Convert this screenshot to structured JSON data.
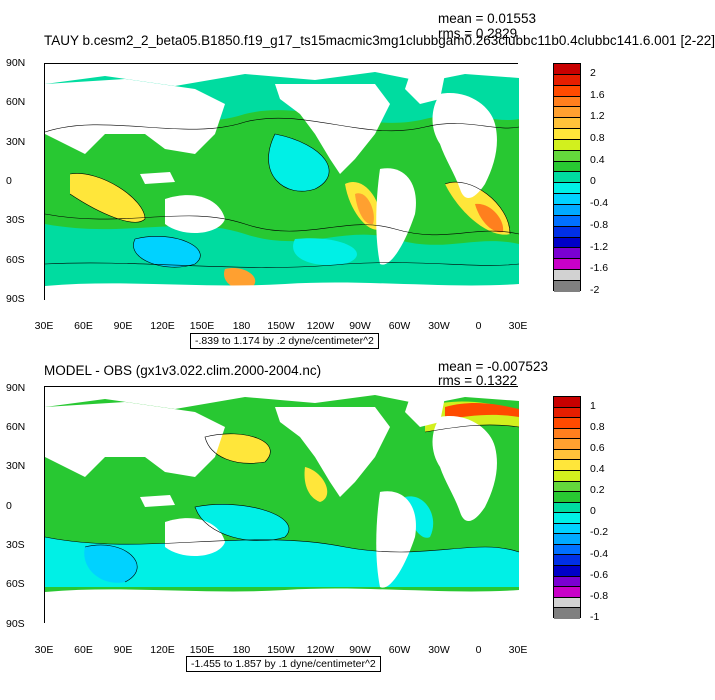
{
  "top": {
    "title": "TAUY b.cesm2_2_beta05.B1850.f19_g17_ts15macmic3mg1clubbgam0.263clubbc11b0.4clubbc141.6.001 [2-22]",
    "mean": "mean = 0.01553",
    "rms": "rms = 0.2829",
    "contour_info": "-.839 to 1.174 by .2 dyne/centimeter^2",
    "colorbar_labels": [
      "2",
      "1.6",
      "1.2",
      "0.8",
      "0.4",
      "0",
      "-0.4",
      "-0.8",
      "-1.2",
      "-1.6",
      "-2"
    ],
    "colors": [
      "#c80000",
      "#e61e00",
      "#ff4a00",
      "#ff7f1e",
      "#ffa030",
      "#ffc23a",
      "#ffe63a",
      "#d2f01e",
      "#64d83c",
      "#28c832",
      "#00dca0",
      "#00f0e6",
      "#00d2ff",
      "#00aaff",
      "#0070ff",
      "#0030e6",
      "#0000c8",
      "#7a00d2",
      "#c800c8",
      "#d2d2d2",
      "#808080"
    ]
  },
  "bottom": {
    "title": "MODEL - OBS (gx1v3.022.clim.2000-2004.nc)",
    "mean": "mean = -0.007523",
    "rms": "rms = 0.1322",
    "contour_info": "-1.455 to 1.857 by .1 dyne/centimeter^2",
    "colorbar_labels": [
      "1",
      "0.8",
      "0.6",
      "0.4",
      "0.2",
      "0",
      "-0.2",
      "-0.4",
      "-0.6",
      "-0.8",
      "-1"
    ],
    "colors": [
      "#c80000",
      "#e61e00",
      "#ff4a00",
      "#ff7f1e",
      "#ffa030",
      "#ffc23a",
      "#ffe63a",
      "#d2f01e",
      "#64d83c",
      "#28c832",
      "#00dca0",
      "#00f0e6",
      "#00d2ff",
      "#00aaff",
      "#0070ff",
      "#0030e6",
      "#0000c8",
      "#7a00d2",
      "#c800c8",
      "#d2d2d2",
      "#808080"
    ]
  },
  "lat_labels": [
    "90N",
    "60N",
    "30N",
    "0",
    "30S",
    "60S",
    "90S"
  ],
  "lon_labels": [
    "30E",
    "60E",
    "90E",
    "120E",
    "150E",
    "180",
    "150W",
    "120W",
    "90W",
    "60W",
    "30W",
    "0",
    "30E"
  ]
}
